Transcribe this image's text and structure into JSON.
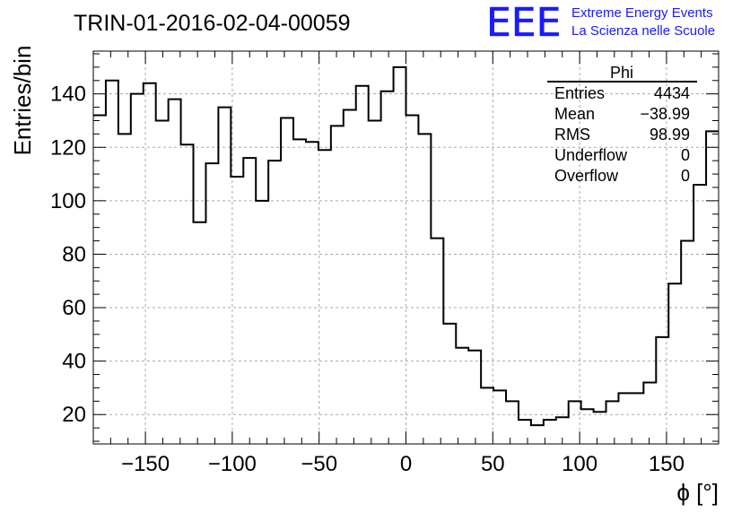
{
  "title": "TRIN-01-2016-02-04-00059",
  "logo": {
    "mark": "EEE",
    "line1": "Extreme Energy Events",
    "line2": "La Scienza nelle Scuole",
    "color": "#1a1aff"
  },
  "stats_box": {
    "title": "Phi",
    "rows": [
      {
        "label": "Entries",
        "value": "4434"
      },
      {
        "label": "Mean",
        "value": "−38.99"
      },
      {
        "label": "RMS",
        "value": "98.99"
      },
      {
        "label": "Underflow",
        "value": "0"
      },
      {
        "label": "Overflow",
        "value": "0"
      }
    ]
  },
  "chart_data": {
    "type": "bar",
    "histogram": true,
    "title": "TRIN-01-2016-02-04-00059",
    "xlabel": "ϕ [°]",
    "ylabel": "Entries/bin",
    "xlim": [
      -180,
      180
    ],
    "ylim": [
      9,
      156
    ],
    "bin_width": 7.2,
    "x_ticks": [
      -150,
      -100,
      -50,
      0,
      50,
      100,
      150
    ],
    "x_tick_labels": [
      "−150",
      "−100",
      "−50",
      "0",
      "50",
      "100",
      "150"
    ],
    "y_ticks": [
      20,
      40,
      60,
      80,
      100,
      120,
      140
    ],
    "y_tick_labels": [
      "20",
      "40",
      "60",
      "80",
      "100",
      "120",
      "140"
    ],
    "grid": true,
    "values": [
      132,
      145,
      125,
      140,
      144,
      130,
      138,
      121,
      92,
      114,
      135,
      109,
      116,
      100,
      115,
      131,
      123,
      122,
      119,
      128,
      134,
      143,
      130,
      141,
      150,
      132,
      125,
      86,
      54,
      45,
      44,
      30,
      29,
      25,
      18,
      16,
      18,
      19,
      25,
      22,
      21,
      25,
      28,
      28,
      32,
      49,
      69,
      85,
      106,
      126
    ],
    "line_color": "#000000"
  }
}
